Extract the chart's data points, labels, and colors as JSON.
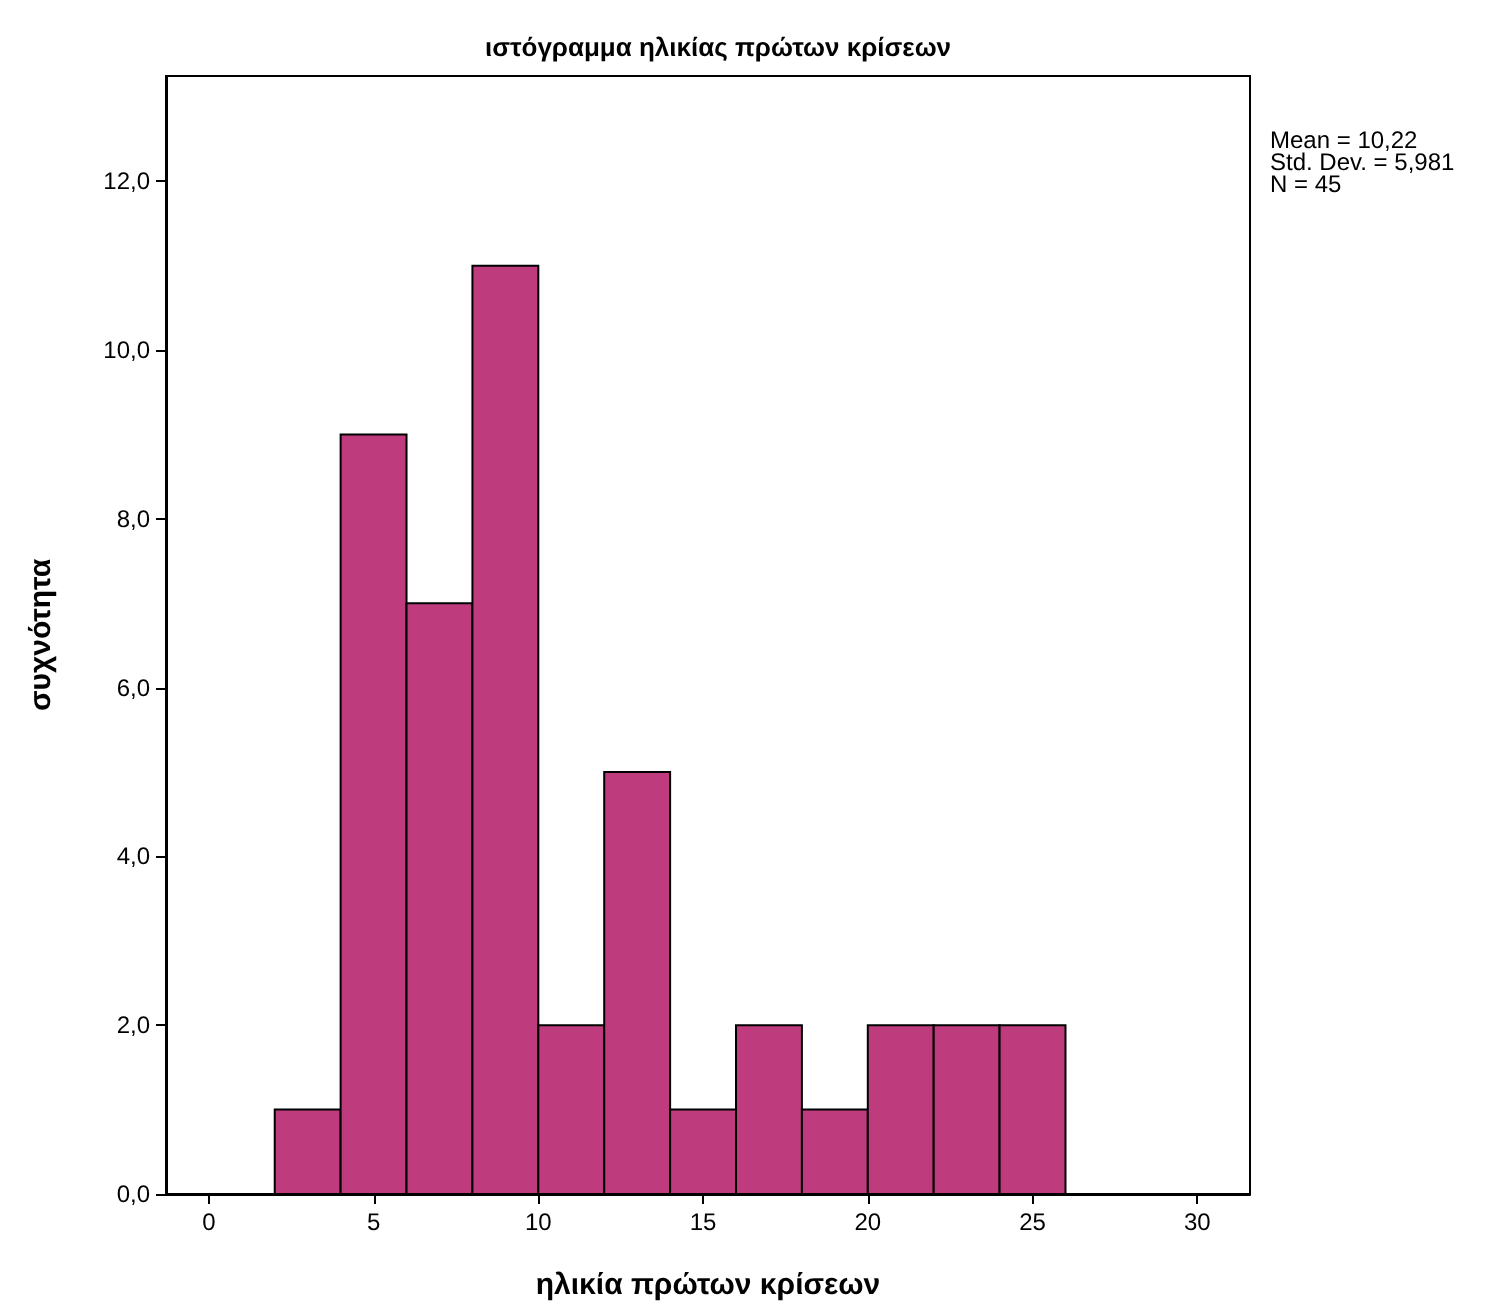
{
  "chart_data": {
    "type": "histogram",
    "title": "ιστόγραμμα ηλικίας πρώτων κρίσεων",
    "xlabel": "ηλικία πρώτων κρίσεων",
    "ylabel": "συχνότητα",
    "bins": [
      2,
      4,
      6,
      8,
      10,
      12,
      14,
      16,
      18,
      20,
      22,
      24,
      26
    ],
    "values": [
      1,
      9,
      7,
      11,
      2,
      5,
      1,
      2,
      1,
      2,
      2,
      2
    ],
    "color": "#be3c7e",
    "xlim": [
      -1.3,
      31.6
    ],
    "xticks": [
      0,
      5,
      10,
      15,
      20,
      25,
      30
    ],
    "ylim": [
      0,
      13.25
    ],
    "yticks": [
      {
        "value": 0,
        "label": "0,0"
      },
      {
        "value": 2,
        "label": "2,0"
      },
      {
        "value": 4,
        "label": "4,0"
      },
      {
        "value": 6,
        "label": "6,0"
      },
      {
        "value": 8,
        "label": "8,0"
      },
      {
        "value": 10,
        "label": "10,0"
      },
      {
        "value": 12,
        "label": "12,0"
      }
    ],
    "grid": false,
    "annotations": [
      "Mean = 10,22",
      "Std. Dev. = 5,981",
      "N = 45"
    ]
  }
}
